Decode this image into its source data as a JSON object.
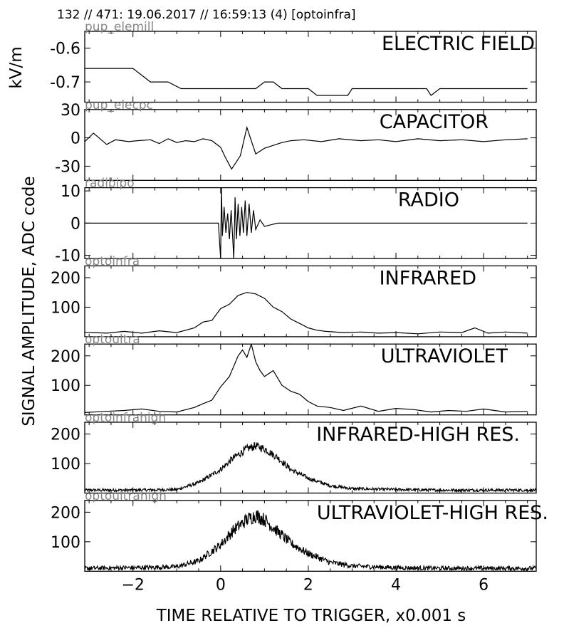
{
  "header": {
    "text": "132 // 471:   19.06.2017 // 16:59:13 (4)  [optoinfra]"
  },
  "x_axis": {
    "label": "TIME RELATIVE TO TRIGGER,   x0.001 s",
    "range": [
      -3.1,
      7.2
    ],
    "ticks": [
      -2,
      0,
      2,
      4,
      6
    ],
    "tick_labels": [
      "−2",
      "0",
      "2",
      "4",
      "6"
    ]
  },
  "y_titles": {
    "top": "kV/m",
    "bottom": "SIGNAL AMPLITUDE,  ADC code"
  },
  "chart_data": [
    {
      "type": "line",
      "title": "ELECTRIC FIELD",
      "sensor": "pup_elemill",
      "ylim": [
        -0.76,
        -0.55
      ],
      "yticks": [
        -0.6,
        -0.7
      ],
      "ytick_labels": [
        "-0.6",
        "-0.7"
      ],
      "x": [
        -3.1,
        -2.0,
        -1.8,
        -1.6,
        -1.2,
        -0.9,
        0.0,
        0.5,
        0.8,
        1.0,
        1.2,
        1.4,
        1.8,
        2.0,
        2.2,
        2.6,
        2.9,
        3.0,
        3.5,
        4.0,
        4.5,
        4.7,
        4.8,
        5.0,
        5.5,
        6.0,
        7.0
      ],
      "y": [
        -0.66,
        -0.66,
        -0.68,
        -0.7,
        -0.7,
        -0.72,
        -0.72,
        -0.72,
        -0.72,
        -0.7,
        -0.7,
        -0.72,
        -0.72,
        -0.72,
        -0.74,
        -0.74,
        -0.74,
        -0.72,
        -0.72,
        -0.72,
        -0.72,
        -0.72,
        -0.74,
        -0.72,
        -0.72,
        -0.72,
        -0.72
      ],
      "style": "step"
    },
    {
      "type": "line",
      "title": "CAPACITOR",
      "sensor": "pup_elecpc",
      "ylim": [
        -45,
        30
      ],
      "yticks": [
        30,
        0,
        -30
      ],
      "ytick_labels": [
        "30",
        "0",
        "-30"
      ],
      "x": [
        -3.1,
        -2.9,
        -2.6,
        -2.4,
        -2.1,
        -1.9,
        -1.6,
        -1.4,
        -1.2,
        -1.0,
        -0.8,
        -0.6,
        -0.4,
        -0.2,
        0.0,
        0.1,
        0.25,
        0.45,
        0.6,
        0.8,
        1.0,
        1.2,
        1.4,
        1.6,
        1.9,
        2.3,
        2.7,
        3.2,
        3.6,
        4.0,
        4.5,
        5.0,
        5.5,
        6.0,
        6.5,
        7.0
      ],
      "y": [
        -4,
        5,
        -7,
        -2,
        -4,
        -3,
        -2,
        -6,
        -1,
        -5,
        -3,
        -4,
        -1,
        -3,
        -10,
        -20,
        -33,
        -19,
        11,
        -17,
        -11,
        -8,
        -5,
        -3,
        -2,
        -4,
        -1,
        -3,
        -2,
        -4,
        -1,
        -3,
        -2,
        -4,
        -2,
        -1
      ]
    },
    {
      "type": "line",
      "title": "RADIO",
      "sensor": "radibipo",
      "ylim": [
        -11,
        11
      ],
      "yticks": [
        10,
        0,
        -10
      ],
      "ytick_labels": [
        "10",
        "0",
        "-10"
      ],
      "x": [
        -3.1,
        -1.0,
        -0.3,
        -0.05,
        0.0,
        0.02,
        0.04,
        0.08,
        0.12,
        0.16,
        0.2,
        0.24,
        0.28,
        0.3,
        0.33,
        0.36,
        0.4,
        0.44,
        0.48,
        0.52,
        0.56,
        0.6,
        0.65,
        0.7,
        0.75,
        0.8,
        0.9,
        1.0,
        1.3,
        2.0,
        3.0,
        4.0,
        5.0,
        6.0,
        7.0
      ],
      "y": [
        0,
        0,
        0,
        0,
        -11,
        11,
        -4,
        5,
        -3,
        3,
        -5,
        4,
        -6,
        -11,
        8,
        -5,
        6,
        -4,
        5,
        -3,
        7,
        -4,
        6,
        -3,
        4,
        -2,
        1,
        -1,
        0,
        0,
        0,
        0,
        0,
        0,
        0
      ]
    },
    {
      "type": "line",
      "title": "INFRARED",
      "sensor": "optoinfra",
      "ylim": [
        0,
        240
      ],
      "yticks": [
        200,
        100
      ],
      "ytick_labels": [
        "200",
        "100"
      ],
      "x": [
        -3.1,
        -2.6,
        -2.2,
        -1.8,
        -1.4,
        -1.0,
        -0.6,
        -0.4,
        -0.2,
        0.0,
        0.2,
        0.4,
        0.6,
        0.8,
        1.0,
        1.2,
        1.4,
        1.6,
        1.8,
        2.0,
        2.2,
        2.4,
        2.8,
        3.2,
        3.6,
        4.0,
        4.5,
        5.0,
        5.5,
        5.8,
        6.1,
        6.5,
        7.0
      ],
      "y": [
        15,
        12,
        18,
        12,
        20,
        14,
        30,
        50,
        55,
        95,
        110,
        140,
        150,
        145,
        130,
        100,
        85,
        60,
        45,
        30,
        22,
        18,
        14,
        16,
        12,
        14,
        10,
        16,
        14,
        30,
        12,
        16,
        12
      ]
    },
    {
      "type": "line",
      "title": "ULTRAVIOLET",
      "sensor": "optoultra",
      "ylim": [
        0,
        240
      ],
      "yticks": [
        200,
        100
      ],
      "ytick_labels": [
        "200",
        "100"
      ],
      "x": [
        -3.1,
        -2.6,
        -2.2,
        -1.8,
        -1.4,
        -1.0,
        -0.6,
        -0.4,
        -0.2,
        0.0,
        0.2,
        0.4,
        0.5,
        0.6,
        0.7,
        0.8,
        0.9,
        1.0,
        1.2,
        1.4,
        1.6,
        1.8,
        2.0,
        2.2,
        2.5,
        2.8,
        3.2,
        3.6,
        4.0,
        4.4,
        4.8,
        5.2,
        5.6,
        6.0,
        6.5,
        7.0
      ],
      "y": [
        8,
        12,
        15,
        20,
        12,
        10,
        25,
        38,
        50,
        95,
        130,
        200,
        220,
        195,
        240,
        180,
        150,
        130,
        150,
        100,
        80,
        70,
        45,
        30,
        25,
        15,
        30,
        12,
        22,
        18,
        10,
        15,
        12,
        20,
        10,
        12
      ]
    },
    {
      "type": "line",
      "title": "INFRARED-HIGH RES.",
      "sensor": "optoinfrahigh",
      "ylim": [
        0,
        240
      ],
      "yticks": [
        200,
        100
      ],
      "ytick_labels": [
        "200",
        "100"
      ],
      "x": [
        -3.1,
        -2.0,
        -1.0,
        -0.5,
        0.0,
        0.3,
        0.6,
        0.8,
        1.0,
        1.3,
        1.6,
        2.0,
        2.5,
        3.0,
        4.0,
        5.0,
        6.0,
        7.0
      ],
      "y": [
        10,
        10,
        12,
        35,
        80,
        120,
        150,
        160,
        150,
        120,
        80,
        50,
        25,
        15,
        12,
        10,
        10,
        10
      ],
      "noise": 10
    },
    {
      "type": "line",
      "title": "ULTRAVIOLET-HIGH RES.",
      "sensor": "optoultrahigh",
      "ylim": [
        0,
        240
      ],
      "yticks": [
        200,
        100
      ],
      "ytick_labels": [
        "200",
        "100"
      ],
      "x": [
        -3.1,
        -2.0,
        -1.0,
        -0.5,
        0.0,
        0.3,
        0.6,
        0.8,
        1.0,
        1.3,
        1.6,
        2.0,
        2.5,
        3.0,
        4.0,
        5.0,
        6.0,
        7.0
      ],
      "y": [
        10,
        12,
        15,
        35,
        90,
        140,
        175,
        190,
        175,
        135,
        95,
        60,
        30,
        18,
        12,
        10,
        10,
        10
      ],
      "noise": 16
    }
  ]
}
